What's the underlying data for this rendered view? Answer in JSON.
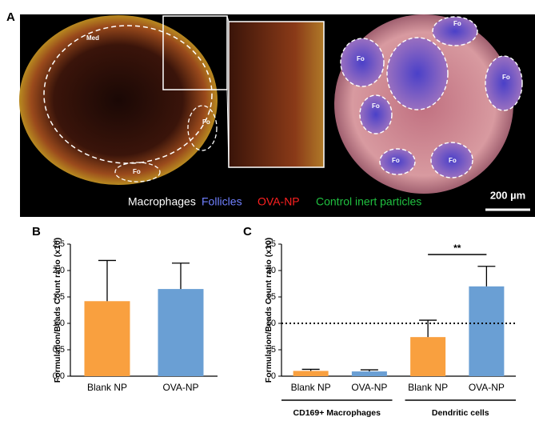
{
  "panel_a": {
    "panel_label": "A",
    "med_label": "Med",
    "follicle_labels": [
      "Fo",
      "Fo",
      "Fo",
      "Fo",
      "Fo",
      "Fo",
      "Fo",
      "Fo"
    ],
    "legend": [
      {
        "text": "Macrophages",
        "color": "#ffffff"
      },
      {
        "text": "Follicles",
        "color": "#7080ff"
      },
      {
        "text": "OVA-NP",
        "color": "#ff2020"
      },
      {
        "text": "Control inert particles",
        "color": "#20c040"
      }
    ],
    "scale_bar": "200 µm"
  },
  "chart_data": [
    {
      "type": "bar",
      "panel_label": "B",
      "y_label": "Formulation/Beads Count ratio (x10)",
      "categories": [
        "Blank NP",
        "OVA-NP"
      ],
      "values": [
        1.42,
        1.65
      ],
      "errors": [
        0.77,
        0.49
      ],
      "colors": [
        "#f9a03f",
        "#6a9fd4"
      ],
      "ylim": [
        0,
        2.5
      ],
      "yticks": [
        {
          "value": 0,
          "label": "0.0"
        },
        {
          "value": 0.5,
          "label": "0.5"
        },
        {
          "value": 1,
          "label": "1.0"
        },
        {
          "value": 1.5,
          "label": "1.5"
        },
        {
          "value": 2,
          "label": "2.0"
        },
        {
          "value": 2.5,
          "label": "2.5"
        }
      ]
    },
    {
      "type": "bar",
      "panel_label": "C",
      "y_label": "Formulation/Beads Count ratio (x10)",
      "categories": [
        "Blank NP",
        "OVA-NP",
        "Blank NP",
        "OVA-NP"
      ],
      "values": [
        1.0,
        0.9,
        7.4,
        17.0
      ],
      "errors": [
        0.3,
        0.3,
        3.2,
        3.8
      ],
      "colors": [
        "#f9a03f",
        "#6a9fd4",
        "#f9a03f",
        "#6a9fd4"
      ],
      "groups": [
        "CD169+ Macrophages",
        "Dendritic cells"
      ],
      "reference_line": 10,
      "significance": "**",
      "ylim": [
        0,
        25
      ],
      "yticks": [
        0,
        5,
        10,
        15,
        20,
        25
      ]
    }
  ]
}
